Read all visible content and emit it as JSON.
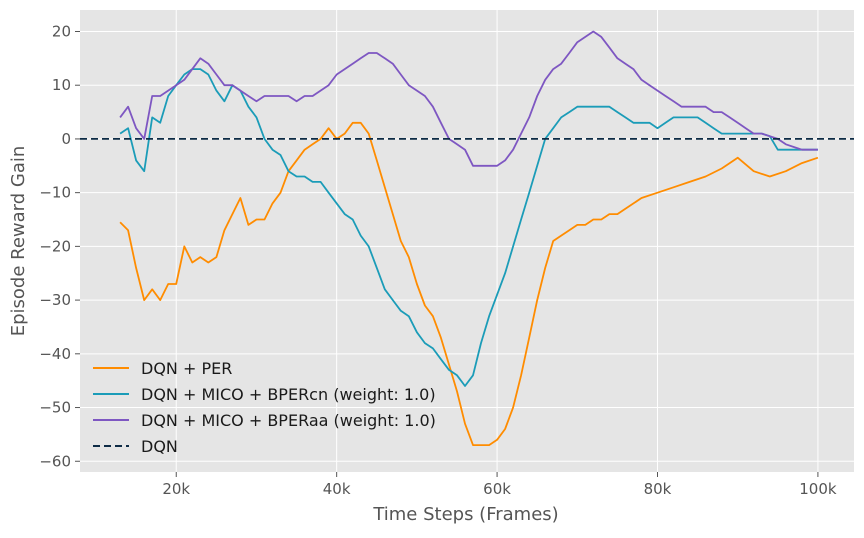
{
  "chart_data": {
    "type": "line",
    "title": "",
    "xlabel": "Time Steps (Frames)",
    "ylabel": "Episode Reward Gain",
    "xlim": [
      8000,
      104500
    ],
    "ylim": [
      -62,
      24
    ],
    "x_ticks": [
      20000,
      40000,
      60000,
      80000,
      100000
    ],
    "x_tick_labels": [
      "20k",
      "40k",
      "60k",
      "80k",
      "100k"
    ],
    "y_ticks": [
      20,
      10,
      0,
      -10,
      -20,
      -30,
      -40,
      -50,
      -60
    ],
    "y_tick_labels": [
      "20",
      "10",
      "0",
      "−10",
      "−20",
      "−30",
      "−40",
      "−50",
      "−60"
    ],
    "grid": true,
    "legend_position": "lower-left",
    "background": "#e5e5e5",
    "series": [
      {
        "name": "DQN + PER",
        "color": "#ff8c00",
        "style": "solid",
        "x": [
          13000,
          14000,
          15000,
          16000,
          17000,
          18000,
          19000,
          20000,
          21000,
          22000,
          23000,
          24000,
          25000,
          26000,
          27000,
          28000,
          29000,
          30000,
          31000,
          32000,
          33000,
          34000,
          35000,
          36000,
          37000,
          38000,
          39000,
          40000,
          41000,
          42000,
          43000,
          44000,
          45000,
          46000,
          47000,
          48000,
          49000,
          50000,
          51000,
          52000,
          53000,
          54000,
          55000,
          56000,
          57000,
          58000,
          59000,
          60000,
          61000,
          62000,
          63000,
          64000,
          65000,
          66000,
          67000,
          68000,
          69000,
          70000,
          71000,
          72000,
          73000,
          74000,
          75000,
          76000,
          78000,
          80000,
          82000,
          84000,
          86000,
          88000,
          90000,
          92000,
          94000,
          96000,
          98000,
          100000
        ],
        "y": [
          -15.5,
          -17,
          -24,
          -30,
          -28,
          -30,
          -27,
          -27,
          -20,
          -23,
          -22,
          -23,
          -22,
          -17,
          -14,
          -11,
          -16,
          -15,
          -15,
          -12,
          -10,
          -6,
          -4,
          -2,
          -1,
          0,
          2,
          0,
          1,
          3,
          3,
          1,
          -4,
          -9,
          -14,
          -19,
          -22,
          -27,
          -31,
          -33,
          -37,
          -42,
          -47,
          -53,
          -57,
          -57,
          -57,
          -56,
          -54,
          -50,
          -44,
          -37,
          -30,
          -24,
          -19,
          -18,
          -17,
          -16,
          -16,
          -15,
          -15,
          -14,
          -14,
          -13,
          -11,
          -10,
          -9,
          -8,
          -7,
          -5.5,
          -3.5,
          -6,
          -7,
          -6,
          -4.5,
          -3.5
        ]
      },
      {
        "name": "DQN + MICO + BPERcn (weight: 1.0)",
        "color": "#1b9cb8",
        "style": "solid",
        "x": [
          13000,
          14000,
          15000,
          16000,
          17000,
          18000,
          19000,
          20000,
          21000,
          22000,
          23000,
          24000,
          25000,
          26000,
          27000,
          28000,
          29000,
          30000,
          31000,
          32000,
          33000,
          34000,
          35000,
          36000,
          37000,
          38000,
          39000,
          40000,
          41000,
          42000,
          43000,
          44000,
          45000,
          46000,
          47000,
          48000,
          49000,
          50000,
          51000,
          52000,
          53000,
          54000,
          55000,
          56000,
          57000,
          58000,
          59000,
          60000,
          61000,
          62000,
          63000,
          64000,
          65000,
          66000,
          67000,
          68000,
          69000,
          70000,
          71000,
          72000,
          73000,
          74000,
          75000,
          76000,
          77000,
          78000,
          79000,
          80000,
          81000,
          82000,
          83000,
          84000,
          85000,
          86000,
          87000,
          88000,
          89000,
          90000,
          91000,
          92000,
          93000,
          94000,
          95000,
          96000,
          97000,
          98000,
          99000,
          100000
        ],
        "y": [
          1,
          2,
          -4,
          -6,
          4,
          3,
          8,
          10,
          12,
          13,
          13,
          12,
          9,
          7,
          10,
          9,
          6,
          4,
          0,
          -2,
          -3,
          -6,
          -7,
          -7,
          -8,
          -8,
          -10,
          -12,
          -14,
          -15,
          -18,
          -20,
          -24,
          -28,
          -30,
          -32,
          -33,
          -36,
          -38,
          -39,
          -41,
          -43,
          -44,
          -46,
          -44,
          -38,
          -33,
          -29,
          -25,
          -20,
          -15,
          -10,
          -5,
          0,
          2,
          4,
          5,
          6,
          6,
          6,
          6,
          6,
          5,
          4,
          3,
          3,
          3,
          2,
          3,
          4,
          4,
          4,
          4,
          3,
          2,
          1,
          1,
          1,
          1,
          1,
          1,
          0.5,
          -2,
          -2,
          -2,
          -2,
          -2,
          -2
        ]
      },
      {
        "name": "DQN + MICO + BPERaa (weight: 1.0)",
        "color": "#7e57c2",
        "style": "solid",
        "x": [
          13000,
          14000,
          15000,
          16000,
          17000,
          18000,
          19000,
          20000,
          21000,
          22000,
          23000,
          24000,
          25000,
          26000,
          27000,
          28000,
          29000,
          30000,
          31000,
          32000,
          33000,
          34000,
          35000,
          36000,
          37000,
          38000,
          39000,
          40000,
          41000,
          42000,
          43000,
          44000,
          45000,
          46000,
          47000,
          48000,
          49000,
          50000,
          51000,
          52000,
          53000,
          54000,
          55000,
          56000,
          57000,
          58000,
          59000,
          60000,
          61000,
          62000,
          63000,
          64000,
          65000,
          66000,
          67000,
          68000,
          69000,
          70000,
          71000,
          72000,
          73000,
          74000,
          75000,
          76000,
          77000,
          78000,
          79000,
          80000,
          81000,
          82000,
          83000,
          84000,
          85000,
          86000,
          87000,
          88000,
          89000,
          90000,
          91000,
          92000,
          93000,
          94000,
          95000,
          96000,
          97000,
          98000,
          99000,
          100000
        ],
        "y": [
          4,
          6,
          2,
          0,
          8,
          8,
          9,
          10,
          11,
          13,
          15,
          14,
          12,
          10,
          10,
          9,
          8,
          7,
          8,
          8,
          8,
          8,
          7,
          8,
          8,
          9,
          10,
          12,
          13,
          14,
          15,
          16,
          16,
          15,
          14,
          12,
          10,
          9,
          8,
          6,
          3,
          0,
          -1,
          -2,
          -5,
          -5,
          -5,
          -5,
          -4,
          -2,
          1,
          4,
          8,
          11,
          13,
          14,
          16,
          18,
          19,
          20,
          19,
          17,
          15,
          14,
          13,
          11,
          10,
          9,
          8,
          7,
          6,
          6,
          6,
          6,
          5,
          5,
          4,
          3,
          2,
          1,
          1,
          0.5,
          0,
          -1,
          -1.5,
          -2,
          -2,
          -2
        ]
      },
      {
        "name": "DQN",
        "color": "#0d2b45",
        "style": "dashed",
        "x": [
          8000,
          104500
        ],
        "y": [
          0,
          0
        ]
      }
    ]
  }
}
